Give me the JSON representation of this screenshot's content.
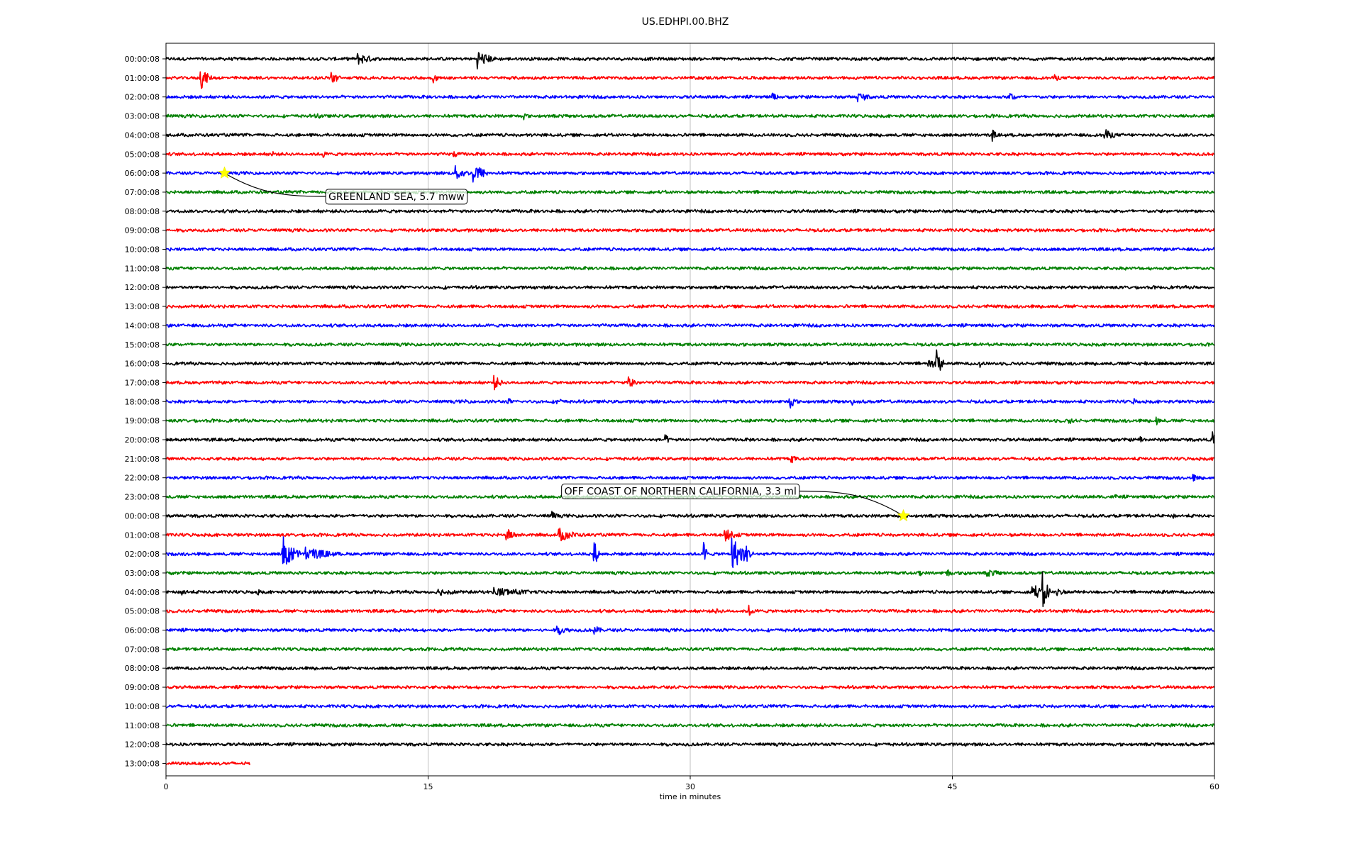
{
  "chart_data": {
    "type": "line",
    "title": "US.EDHPI.00.BHZ",
    "xlabel": "time in minutes",
    "ylabel": "",
    "xlim": [
      0,
      60
    ],
    "xticks": [
      0,
      15,
      30,
      45,
      60
    ],
    "grid": "vertical",
    "row_labels": [
      "00:00:08",
      "01:00:08",
      "02:00:08",
      "03:00:08",
      "04:00:08",
      "05:00:08",
      "06:00:08",
      "07:00:08",
      "08:00:08",
      "09:00:08",
      "10:00:08",
      "11:00:08",
      "12:00:08",
      "13:00:08",
      "14:00:08",
      "15:00:08",
      "16:00:08",
      "17:00:08",
      "18:00:08",
      "19:00:08",
      "20:00:08",
      "21:00:08",
      "22:00:08",
      "23:00:08",
      "00:00:08",
      "01:00:08",
      "02:00:08",
      "03:00:08",
      "04:00:08",
      "05:00:08",
      "06:00:08",
      "07:00:08",
      "08:00:08",
      "09:00:08",
      "10:00:08",
      "11:00:08",
      "12:00:08",
      "13:00:08"
    ],
    "color_cycle": [
      "#000000",
      "#ff0000",
      "#0000ff",
      "#008000"
    ],
    "last_row_end_minutes": 4.8,
    "bursts": [
      {
        "row": 0,
        "t": 11.0,
        "amp": 0.5,
        "dur": 1.5
      },
      {
        "row": 0,
        "t": 17.8,
        "amp": 0.8,
        "dur": 1.2
      },
      {
        "row": 1,
        "t": 2.0,
        "amp": 1.0,
        "dur": 0.6
      },
      {
        "row": 1,
        "t": 9.5,
        "amp": 0.7,
        "dur": 0.5
      },
      {
        "row": 1,
        "t": 15.3,
        "amp": 0.4,
        "dur": 0.5
      },
      {
        "row": 1,
        "t": 50.9,
        "amp": 0.3,
        "dur": 0.5
      },
      {
        "row": 2,
        "t": 34.7,
        "amp": 0.4,
        "dur": 0.5
      },
      {
        "row": 2,
        "t": 39.6,
        "amp": 0.4,
        "dur": 1.3
      },
      {
        "row": 2,
        "t": 48.3,
        "amp": 0.4,
        "dur": 0.8
      },
      {
        "row": 3,
        "t": 8.7,
        "amp": 0.3,
        "dur": 0.5
      },
      {
        "row": 3,
        "t": 20.5,
        "amp": 0.3,
        "dur": 0.4
      },
      {
        "row": 4,
        "t": 47.3,
        "amp": 0.5,
        "dur": 0.3
      },
      {
        "row": 4,
        "t": 53.7,
        "amp": 0.5,
        "dur": 1.0
      },
      {
        "row": 5,
        "t": 6.1,
        "amp": 0.3,
        "dur": 0.4
      },
      {
        "row": 5,
        "t": 9.0,
        "amp": 0.3,
        "dur": 0.4
      },
      {
        "row": 5,
        "t": 16.5,
        "amp": 0.3,
        "dur": 0.4
      },
      {
        "row": 6,
        "t": 16.6,
        "amp": 0.6,
        "dur": 1.0
      },
      {
        "row": 6,
        "t": 17.6,
        "amp": 1.0,
        "dur": 0.9
      },
      {
        "row": 12,
        "t": 15.9,
        "amp": 0.2,
        "dur": 0.3
      },
      {
        "row": 16,
        "t": 43.6,
        "amp": 0.5,
        "dur": 1.0
      },
      {
        "row": 16,
        "t": 44.1,
        "amp": 1.3,
        "dur": 0.4
      },
      {
        "row": 16,
        "t": 46.6,
        "amp": 0.4,
        "dur": 0.4
      },
      {
        "row": 16,
        "t": 50.4,
        "amp": 0.2,
        "dur": 0.3
      },
      {
        "row": 16,
        "t": 56.0,
        "amp": 0.2,
        "dur": 1.0
      },
      {
        "row": 17,
        "t": 18.8,
        "amp": 0.6,
        "dur": 0.6
      },
      {
        "row": 17,
        "t": 26.5,
        "amp": 0.6,
        "dur": 0.7
      },
      {
        "row": 18,
        "t": 17.2,
        "amp": 0.2,
        "dur": 0.4
      },
      {
        "row": 18,
        "t": 19.6,
        "amp": 0.3,
        "dur": 0.4
      },
      {
        "row": 18,
        "t": 22.4,
        "amp": 0.3,
        "dur": 0.8
      },
      {
        "row": 18,
        "t": 35.7,
        "amp": 0.6,
        "dur": 0.5
      },
      {
        "row": 18,
        "t": 39.3,
        "amp": 0.3,
        "dur": 0.3
      },
      {
        "row": 18,
        "t": 55.4,
        "amp": 0.3,
        "dur": 0.4
      },
      {
        "row": 19,
        "t": 51.7,
        "amp": 0.4,
        "dur": 0.3
      },
      {
        "row": 19,
        "t": 56.7,
        "amp": 0.4,
        "dur": 0.3
      },
      {
        "row": 20,
        "t": 10.8,
        "amp": 0.2,
        "dur": 0.3
      },
      {
        "row": 20,
        "t": 28.6,
        "amp": 0.4,
        "dur": 0.4
      },
      {
        "row": 20,
        "t": 55.8,
        "amp": 0.3,
        "dur": 0.4
      },
      {
        "row": 20,
        "t": 59.9,
        "amp": 1.0,
        "dur": 0.1
      },
      {
        "row": 21,
        "t": 35.8,
        "amp": 0.4,
        "dur": 0.4
      },
      {
        "row": 22,
        "t": 58.8,
        "amp": 0.3,
        "dur": 0.8
      },
      {
        "row": 23,
        "t": 54.3,
        "amp": 0.3,
        "dur": 0.3
      },
      {
        "row": 24,
        "t": 22.1,
        "amp": 0.4,
        "dur": 0.5
      },
      {
        "row": 24,
        "t": 57.6,
        "amp": 0.3,
        "dur": 0.3
      },
      {
        "row": 25,
        "t": 19.5,
        "amp": 0.5,
        "dur": 1.0
      },
      {
        "row": 25,
        "t": 22.5,
        "amp": 0.6,
        "dur": 1.6
      },
      {
        "row": 25,
        "t": 32.0,
        "amp": 0.5,
        "dur": 1.2
      },
      {
        "row": 26,
        "t": 6.7,
        "amp": 1.5,
        "dur": 1.0
      },
      {
        "row": 26,
        "t": 8.0,
        "amp": 0.6,
        "dur": 2.5
      },
      {
        "row": 26,
        "t": 24.5,
        "amp": 1.2,
        "dur": 0.3
      },
      {
        "row": 26,
        "t": 30.8,
        "amp": 1.0,
        "dur": 0.2
      },
      {
        "row": 26,
        "t": 32.4,
        "amp": 1.5,
        "dur": 1.0
      },
      {
        "row": 26,
        "t": 33.1,
        "amp": 1.0,
        "dur": 0.5
      },
      {
        "row": 27,
        "t": 43.1,
        "amp": 0.3,
        "dur": 0.5
      },
      {
        "row": 27,
        "t": 44.7,
        "amp": 0.4,
        "dur": 0.5
      },
      {
        "row": 27,
        "t": 45.7,
        "amp": 0.3,
        "dur": 0.5
      },
      {
        "row": 27,
        "t": 47.0,
        "amp": 0.3,
        "dur": 2.0
      },
      {
        "row": 28,
        "t": 0.9,
        "amp": 0.4,
        "dur": 0.6
      },
      {
        "row": 28,
        "t": 5.2,
        "amp": 0.3,
        "dur": 0.6
      },
      {
        "row": 28,
        "t": 15.6,
        "amp": 0.3,
        "dur": 2.5
      },
      {
        "row": 28,
        "t": 18.8,
        "amp": 0.4,
        "dur": 4.0
      },
      {
        "row": 28,
        "t": 49.6,
        "amp": 0.8,
        "dur": 0.8
      },
      {
        "row": 28,
        "t": 50.2,
        "amp": 1.6,
        "dur": 0.4
      },
      {
        "row": 28,
        "t": 51.0,
        "amp": 0.5,
        "dur": 0.6
      },
      {
        "row": 28,
        "t": 57.0,
        "amp": 0.3,
        "dur": 0.5
      },
      {
        "row": 29,
        "t": 31.5,
        "amp": 0.2,
        "dur": 1.5
      },
      {
        "row": 29,
        "t": 33.4,
        "amp": 0.5,
        "dur": 0.3
      },
      {
        "row": 30,
        "t": 22.4,
        "amp": 0.4,
        "dur": 1.2
      },
      {
        "row": 30,
        "t": 24.5,
        "amp": 0.4,
        "dur": 0.8
      }
    ],
    "annotations": [
      {
        "text": "GREENLAND SEA, 5.7 mww",
        "marker_row": 6,
        "marker_minute": 3.35,
        "label_minute": 9.3,
        "label_row": 7.22
      },
      {
        "text": "OFF COAST OF NORTHERN CALIFORNIA, 3.3 ml",
        "marker_row": 24,
        "marker_minute": 42.2,
        "label_minute": 22.8,
        "label_row": 22.7
      }
    ]
  }
}
